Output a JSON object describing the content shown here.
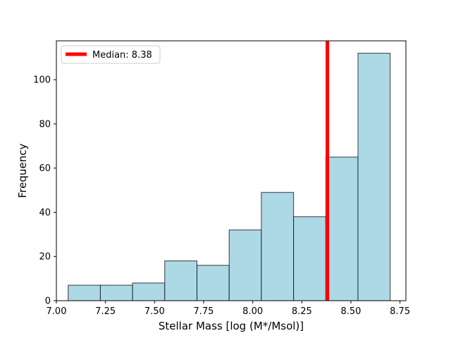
{
  "chart_data": {
    "type": "bar",
    "subtype": "histogram",
    "xlabel": "Stellar Mass [log (M*/Msol)]",
    "ylabel": "Frequency",
    "xlim": [
      7.0,
      8.78
    ],
    "ylim": [
      0,
      117.6
    ],
    "x_ticks": [
      7.0,
      7.25,
      7.5,
      7.75,
      8.0,
      8.25,
      8.5,
      8.75
    ],
    "x_tick_labels": [
      "7.00",
      "7.25",
      "7.50",
      "7.75",
      "8.00",
      "8.25",
      "8.50",
      "8.75"
    ],
    "y_ticks": [
      0,
      20,
      40,
      60,
      80,
      100
    ],
    "y_tick_labels": [
      "0",
      "20",
      "40",
      "60",
      "80",
      "100"
    ],
    "bin_edges": [
      7.06,
      7.224,
      7.388,
      7.552,
      7.716,
      7.88,
      8.044,
      8.208,
      8.372,
      8.536,
      8.7
    ],
    "counts": [
      7,
      7,
      8,
      18,
      16,
      32,
      49,
      38,
      65,
      112
    ],
    "bar_color": "#add8e6",
    "bar_edge_color": "#000000",
    "median": 8.38,
    "median_color": "#ff0000",
    "legend": {
      "label": "Median: 8.38",
      "placement": "top-left"
    },
    "grid": false
  }
}
